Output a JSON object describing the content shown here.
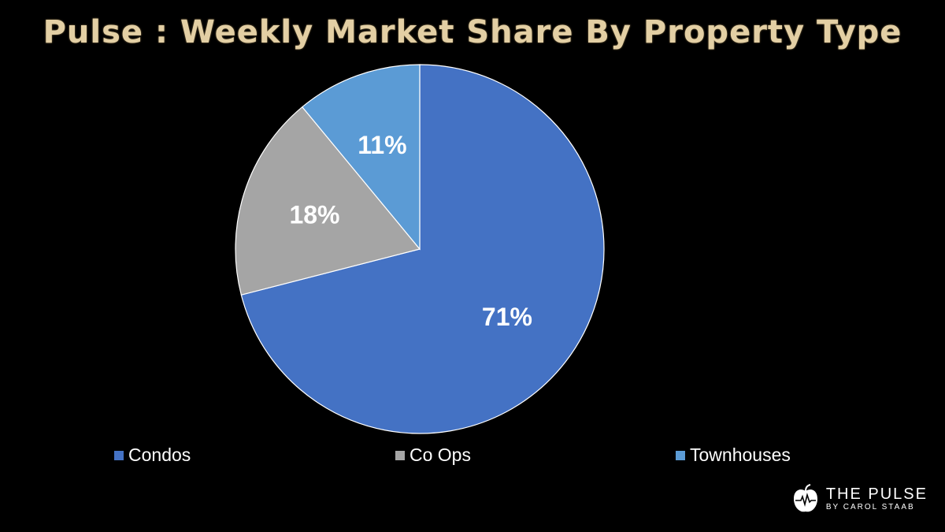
{
  "slide": {
    "title": "Pulse : Weekly Market Share By Property Type"
  },
  "chart_data": {
    "type": "pie",
    "title": "Pulse : Weekly Market Share By Property Type",
    "start_angle_deg": 0,
    "direction": "clockwise",
    "legend_position": "bottom",
    "slices": [
      {
        "name": "Condos",
        "value": 71,
        "label": "71%",
        "color": "#4472c4"
      },
      {
        "name": "Co Ops",
        "value": 18,
        "label": "18%",
        "color": "#a5a5a5"
      },
      {
        "name": "Townhouses",
        "value": 11,
        "label": "11%",
        "color": "#5b9bd5"
      }
    ]
  },
  "legend": {
    "items": [
      {
        "label": "Condos",
        "color": "#4472c4"
      },
      {
        "label": "Co Ops",
        "color": "#a5a5a5"
      },
      {
        "label": "Townhouses",
        "color": "#5b9bd5"
      }
    ]
  },
  "logo": {
    "brand": "THE PULSE",
    "subtitle": "BY CAROL STAAB",
    "icon": "apple-heartbeat-icon"
  }
}
